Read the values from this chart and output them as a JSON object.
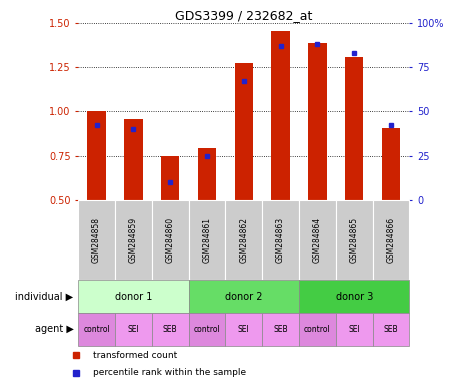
{
  "title": "GDS3399 / 232682_at",
  "samples": [
    "GSM284858",
    "GSM284859",
    "GSM284860",
    "GSM284861",
    "GSM284862",
    "GSM284863",
    "GSM284864",
    "GSM284865",
    "GSM284866"
  ],
  "transformed_count": [
    1.0,
    0.955,
    0.745,
    0.79,
    1.275,
    1.455,
    1.385,
    1.305,
    0.905
  ],
  "percentile_rank": [
    42,
    40,
    10,
    25,
    67,
    87,
    88,
    83,
    42
  ],
  "bar_color": "#cc2200",
  "dot_color": "#2222cc",
  "ymin": 0.5,
  "ymax": 1.5,
  "y2min": 0,
  "y2max": 100,
  "yticks": [
    0.5,
    0.75,
    1.0,
    1.25,
    1.5
  ],
  "y2ticks": [
    0,
    25,
    50,
    75,
    100
  ],
  "y2ticklabels": [
    "0",
    "25",
    "50",
    "75",
    "100%"
  ],
  "donor_groups": [
    {
      "label": "donor 1",
      "start": 0,
      "end": 3,
      "color": "#ccffcc"
    },
    {
      "label": "donor 2",
      "start": 3,
      "end": 6,
      "color": "#66dd66"
    },
    {
      "label": "donor 3",
      "start": 6,
      "end": 9,
      "color": "#44cc44"
    }
  ],
  "agent_labels": [
    "control",
    "SEI",
    "SEB",
    "control",
    "SEI",
    "SEB",
    "control",
    "SEI",
    "SEB"
  ],
  "agent_colors": [
    "#dd88dd",
    "#ee99ee",
    "#dd88dd",
    "#dd88dd",
    "#ee99ee",
    "#dd88dd",
    "#dd88dd",
    "#ee99ee",
    "#dd88dd"
  ],
  "legend_red": "transformed count",
  "legend_blue": "percentile rank within the sample",
  "sample_bg_color": "#cccccc",
  "background_color": "#ffffff",
  "individual_label": "individual",
  "agent_label": "agent"
}
